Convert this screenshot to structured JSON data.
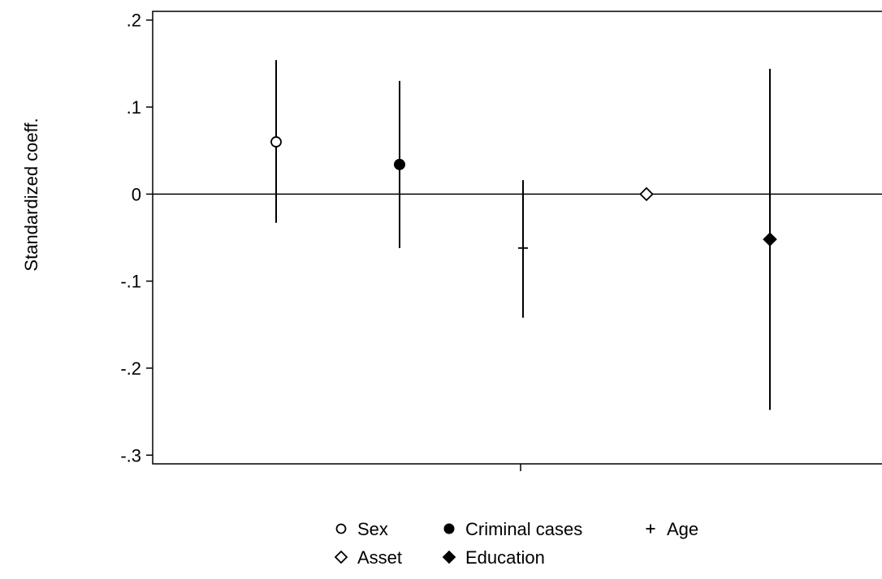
{
  "chart_data": {
    "type": "scatter",
    "title": "",
    "xlabel": "",
    "ylabel": "Standardized coeff.",
    "ylim": [
      -0.31,
      0.21
    ],
    "yticks": [
      {
        "value": 0.2,
        "label": ".2"
      },
      {
        "value": 0.1,
        "label": ".1"
      },
      {
        "value": 0,
        "label": "0"
      },
      {
        "value": -0.1,
        "label": "-.1"
      },
      {
        "value": -0.2,
        "label": "-.2"
      },
      {
        "value": -0.3,
        "label": "-.3"
      }
    ],
    "reference_line": 0,
    "grid": false,
    "legend_position": "bottom",
    "series": [
      {
        "name": "Sex",
        "marker": "circle-open",
        "x": 1,
        "coef": 0.06,
        "ci_low": -0.033,
        "ci_high": 0.154
      },
      {
        "name": "Criminal cases",
        "marker": "circle-filled",
        "x": 2,
        "coef": 0.034,
        "ci_low": -0.062,
        "ci_high": 0.13
      },
      {
        "name": "Age",
        "marker": "plus",
        "x": 3,
        "coef": -0.062,
        "ci_low": -0.142,
        "ci_high": 0.016
      },
      {
        "name": "Asset",
        "marker": "diamond-open",
        "x": 4,
        "coef": 0.0,
        "ci_low": 0.0,
        "ci_high": 0.0
      },
      {
        "name": "Education",
        "marker": "diamond-filled",
        "x": 5,
        "coef": -0.052,
        "ci_low": -0.248,
        "ci_high": 0.144
      }
    ]
  }
}
